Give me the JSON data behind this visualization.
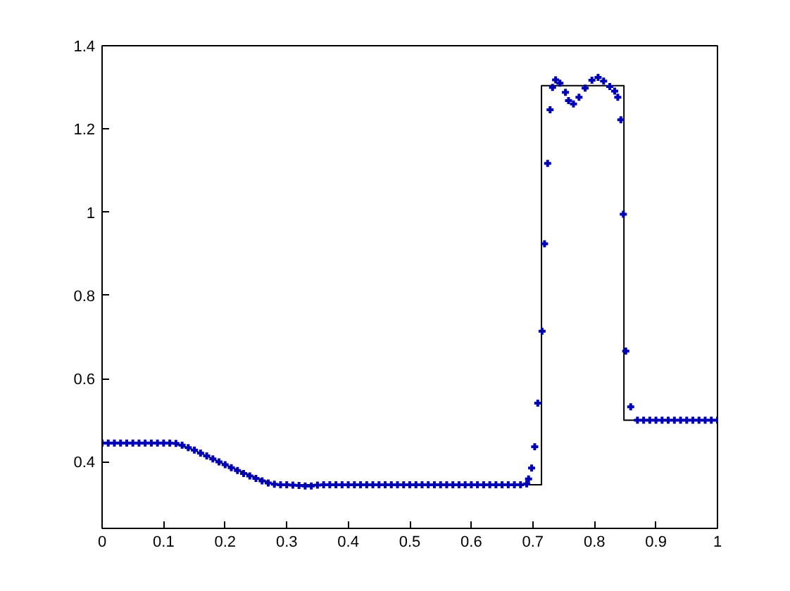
{
  "chart_data": {
    "type": "scatter",
    "xlim": [
      0,
      1
    ],
    "ylim": [
      0.24,
      1.4
    ],
    "xticks": [
      0,
      0.1,
      0.2,
      0.3,
      0.4,
      0.5,
      0.6,
      0.7,
      0.8,
      0.9,
      1
    ],
    "yticks": [
      0.4,
      0.6,
      0.8,
      1,
      1.2,
      1.4
    ],
    "grid": false,
    "series": [
      {
        "type": "line",
        "color": "#000000",
        "marker": "none",
        "line_style": "solid",
        "x": [
          0,
          0.115,
          0.15,
          0.2,
          0.25,
          0.283,
          0.714,
          0.714,
          0.848,
          0.848,
          1
        ],
        "values": [
          0.445,
          0.445,
          0.428,
          0.393,
          0.362,
          0.345,
          0.345,
          1.304,
          1.304,
          0.5,
          0.5
        ]
      },
      {
        "color": "#0000b4",
        "marker": "cross",
        "x": [
          0,
          0.01,
          0.02,
          0.03,
          0.04,
          0.05,
          0.06,
          0.07,
          0.08,
          0.09,
          0.1,
          0.11,
          0.12,
          0.13,
          0.14,
          0.15,
          0.16,
          0.17,
          0.18,
          0.19,
          0.2,
          0.21,
          0.22,
          0.23,
          0.24,
          0.25,
          0.26,
          0.27,
          0.28,
          0.29,
          0.3,
          0.31,
          0.32,
          0.33,
          0.34,
          0.35,
          0.36,
          0.37,
          0.38,
          0.39,
          0.4,
          0.41,
          0.42,
          0.43,
          0.44,
          0.45,
          0.46,
          0.47,
          0.48,
          0.49,
          0.5,
          0.51,
          0.52,
          0.53,
          0.54,
          0.55,
          0.56,
          0.57,
          0.58,
          0.59,
          0.6,
          0.61,
          0.62,
          0.63,
          0.64,
          0.65,
          0.66,
          0.67,
          0.68,
          0.69,
          0.693,
          0.698,
          0.703,
          0.708,
          0.715,
          0.719,
          0.724,
          0.728,
          0.732,
          0.737,
          0.744,
          0.753,
          0.758,
          0.766,
          0.775,
          0.785,
          0.796,
          0.806,
          0.815,
          0.825,
          0.833,
          0.838,
          0.843,
          0.847,
          0.851,
          0.859,
          0.87,
          0.88,
          0.89,
          0.9,
          0.91,
          0.92,
          0.93,
          0.94,
          0.95,
          0.96,
          0.97,
          0.98,
          0.99,
          1
        ],
        "values": [
          0.445,
          0.445,
          0.445,
          0.445,
          0.445,
          0.445,
          0.445,
          0.445,
          0.445,
          0.445,
          0.445,
          0.445,
          0.444,
          0.44,
          0.434,
          0.428,
          0.421,
          0.414,
          0.407,
          0.4,
          0.393,
          0.386,
          0.379,
          0.372,
          0.366,
          0.36,
          0.354,
          0.349,
          0.346,
          0.345,
          0.345,
          0.344,
          0.343,
          0.342,
          0.342,
          0.344,
          0.345,
          0.345,
          0.345,
          0.345,
          0.345,
          0.345,
          0.345,
          0.345,
          0.345,
          0.345,
          0.345,
          0.345,
          0.345,
          0.345,
          0.345,
          0.345,
          0.345,
          0.345,
          0.345,
          0.345,
          0.345,
          0.345,
          0.345,
          0.345,
          0.345,
          0.345,
          0.345,
          0.345,
          0.345,
          0.345,
          0.345,
          0.345,
          0.345,
          0.347,
          0.359,
          0.385,
          0.436,
          0.541,
          0.714,
          0.924,
          1.117,
          1.246,
          1.3,
          1.318,
          1.31,
          1.288,
          1.268,
          1.26,
          1.276,
          1.298,
          1.317,
          1.324,
          1.315,
          1.302,
          1.291,
          1.276,
          1.222,
          0.995,
          0.666,
          0.532,
          0.5,
          0.5,
          0.5,
          0.5,
          0.5,
          0.5,
          0.5,
          0.5,
          0.5,
          0.5,
          0.5,
          0.5,
          0.5,
          0.5
        ]
      }
    ]
  }
}
